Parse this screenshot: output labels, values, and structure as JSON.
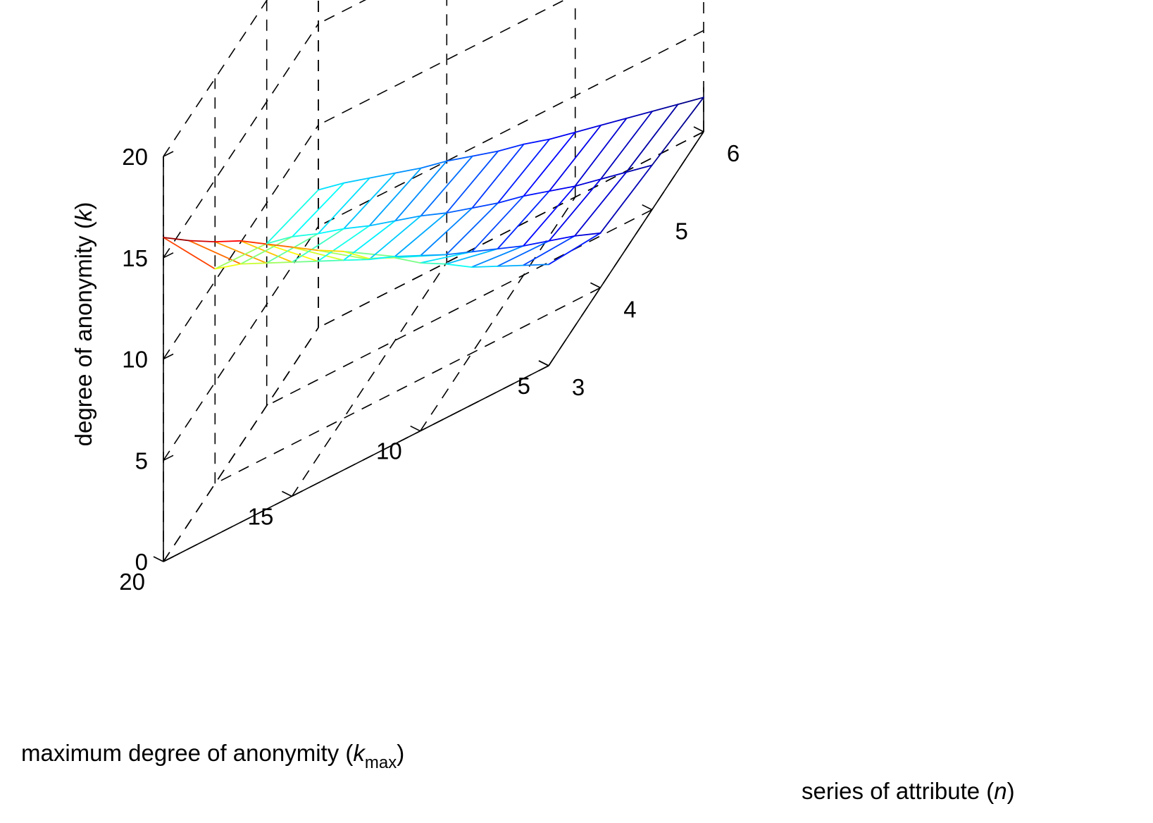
{
  "chart_data": {
    "type": "surface-mesh",
    "title": "",
    "n": [
      3,
      4,
      5,
      6
    ],
    "kmax": [
      5,
      6,
      7,
      8,
      9,
      10,
      11,
      12,
      13,
      14,
      15,
      16,
      17,
      18,
      19,
      20
    ],
    "z": [
      [
        5.0,
        2.7,
        2.2,
        1.7
      ],
      [
        5.6,
        3.2,
        2.5,
        2.0
      ],
      [
        6.2,
        3.6,
        2.8,
        2.3
      ],
      [
        6.8,
        4.0,
        3.1,
        2.6
      ],
      [
        7.6,
        4.5,
        3.5,
        2.9
      ],
      [
        8.3,
        5.0,
        3.9,
        3.2
      ],
      [
        9.2,
        5.5,
        4.2,
        3.5
      ],
      [
        9.8,
        6.1,
        4.6,
        3.9
      ],
      [
        10.8,
        6.7,
        5.0,
        4.2
      ],
      [
        11.5,
        7.2,
        5.5,
        4.6
      ],
      [
        12.3,
        7.8,
        5.9,
        5.0
      ],
      [
        13.1,
        8.4,
        6.3,
        5.3
      ],
      [
        13.9,
        9.0,
        6.8,
        5.7
      ],
      [
        14.5,
        9.6,
        7.2,
        6.1
      ],
      [
        15.2,
        10.2,
        7.7,
        6.5
      ],
      [
        16.0,
        10.6,
        8.0,
        6.8
      ]
    ],
    "xlabel": "series of attribute (",
    "xlabel_var": "n",
    "xlabel_end": ")",
    "ylabel": "maximum degree of anonymity (",
    "ylabel_var": "k",
    "ylabel_sub": "max",
    "ylabel_end": ")",
    "zlabel": "degree of anonymity (",
    "zlabel_var": "k",
    "zlabel_end": ")",
    "xticks": [
      "3",
      "4",
      "5",
      "6"
    ],
    "yticks": [
      "5",
      "10",
      "15",
      "20"
    ],
    "zticks": [
      "0",
      "5",
      "10",
      "15",
      "20"
    ],
    "xlim": [
      3,
      6
    ],
    "ylim": [
      5,
      20
    ],
    "zlim": [
      0,
      20
    ],
    "colormap": "jet",
    "grid": true,
    "box": true
  }
}
